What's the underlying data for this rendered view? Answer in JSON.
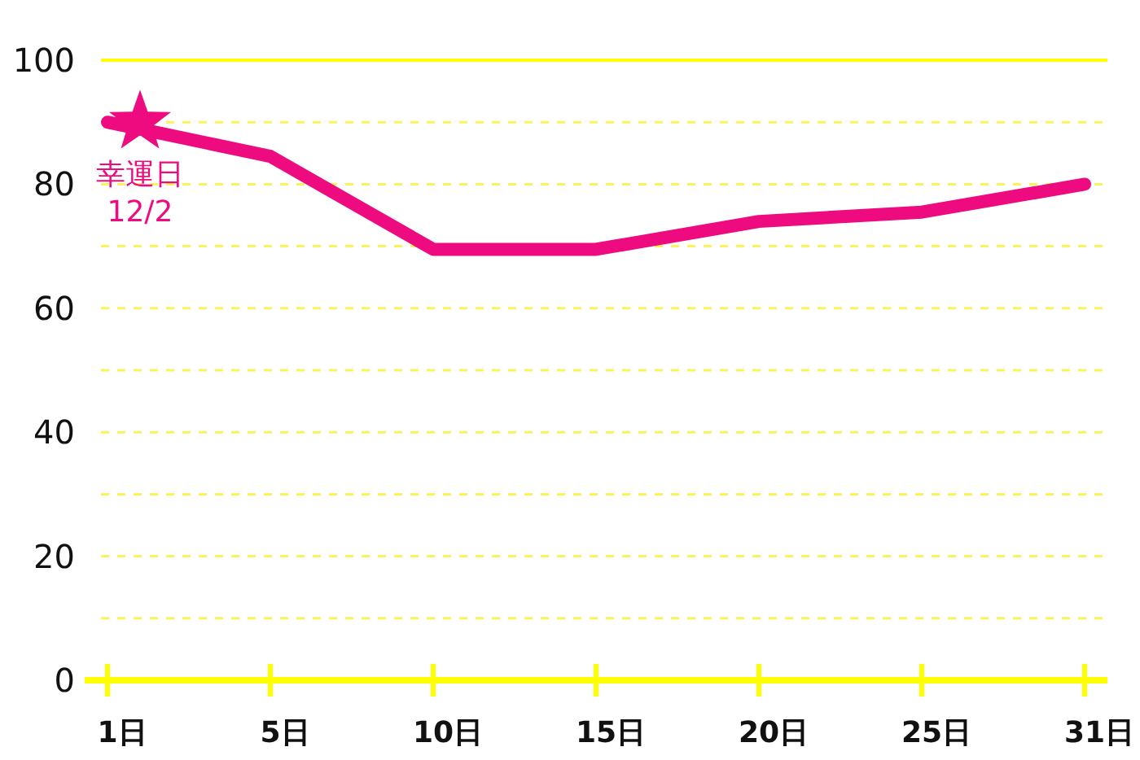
{
  "chart_data": {
    "type": "line",
    "categories": [
      "1日",
      "5日",
      "10日",
      "15日",
      "20日",
      "25日",
      "31日"
    ],
    "series": [
      {
        "color": "#ee0a7f",
        "values": [
          90,
          84.5,
          69.5,
          69.5,
          74,
          75.5,
          80
        ]
      }
    ],
    "ylim": [
      0,
      100
    ],
    "yticks": [
      0,
      {
        "value": 10,
        "label": null
      },
      20,
      {
        "value": 30,
        "label": null
      },
      40,
      {
        "value": 50,
        "label": null
      },
      60,
      {
        "value": 70,
        "label": null
      },
      80,
      {
        "value": 90,
        "label": null
      },
      100
    ],
    "grid": "y",
    "line_style": "solid",
    "annotations": [
      {
        "text": "幸運日\n12/2",
        "x": "1日",
        "y": 90
      }
    ]
  }
}
